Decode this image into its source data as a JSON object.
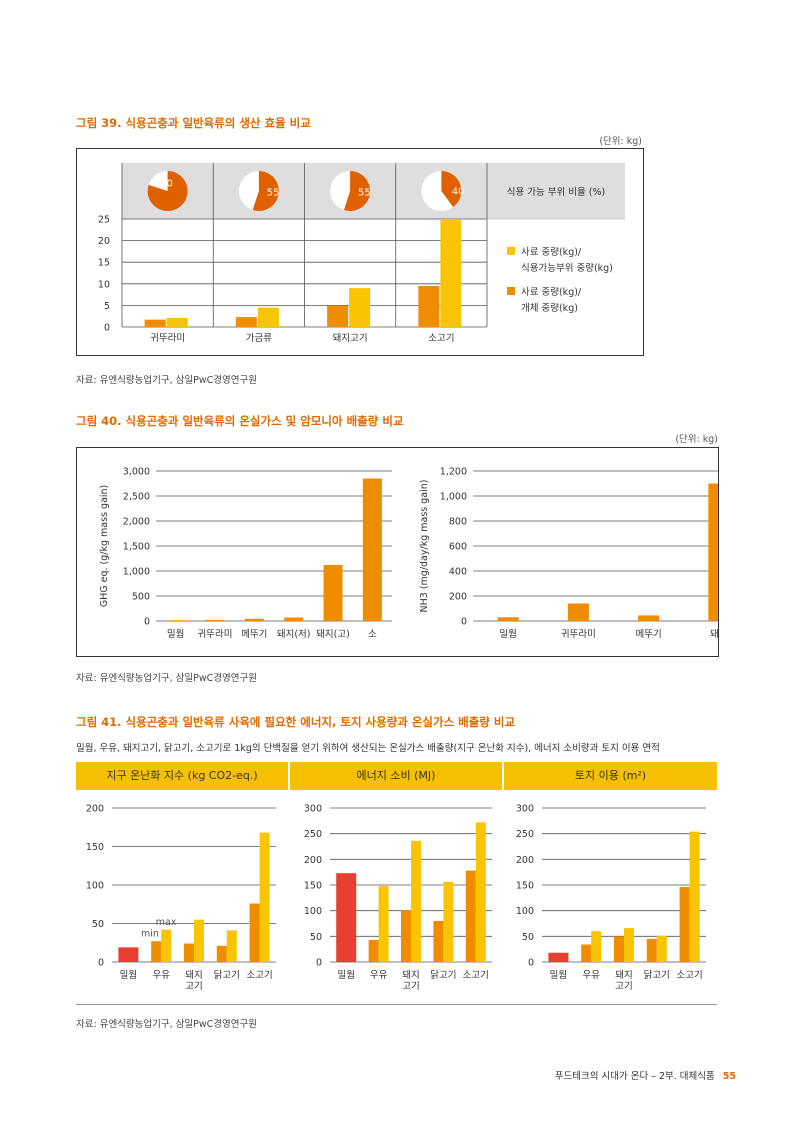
{
  "fig39": {
    "title": "그림 39. 식용곤충과 일반육류의 생산 효율 비교",
    "unit": "(단위: kg)",
    "source": "자료: 유엔식량농업기구, 삼일PwC경영연구원",
    "pie_header": "식용 가능 부위 비율 (%)",
    "legend_yellow_1": "사료 중량(kg)/",
    "legend_yellow_2": "식용가능부위 중량(kg)",
    "legend_orange_1": "사료 중량(kg)/",
    "legend_orange_2": "개체 중량(kg)"
  },
  "fig40": {
    "title": "그림 40. 식용곤충과 일반육류의 온실가스 및 암모니아 배출량 비교",
    "unit": "(단위: kg)",
    "source": "자료: 유엔식량농업기구, 삼일PwC경영연구원"
  },
  "fig41": {
    "title": "그림 41. 식용곤충과 일반육류 사육에 필요한 에너지, 토지 사용량과 온실가스 배출량 비교",
    "description": "밀웜, 우유, 돼지고기, 닭고기, 소고기로 1kg의 단백질을 얻기 위하여 생산되는 온실가스 배출량(지구 온난화 지수), 에너지 소비량과 토지 이용 면적",
    "header_ghg": "지구 온난화 지수 (kg CO2-eq.)",
    "header_energy": "에너지 소비 (MJ)",
    "header_land": "토지 이용 (m²)",
    "source": "자료: 유엔식량농업기구, 삼일PwC경영연구원"
  },
  "footer": {
    "text": "푸드테크의 시대가 온다 – 2부. 대체식품",
    "page": "55"
  },
  "colors": {
    "orange": "#f08c00",
    "yellow": "#f9c500",
    "red": "#e84030",
    "dark_orange": "#e06000",
    "title": "#e06a00"
  },
  "chart_data": [
    {
      "type": "bar",
      "id": "fig39",
      "categories": [
        "귀뚜라미",
        "가금류",
        "돼지고기",
        "소고기"
      ],
      "series": [
        {
          "values": [
            1.7,
            2.3,
            5.0,
            9.5
          ]
        },
        {
          "values": [
            2.1,
            4.5,
            9.0,
            25.0
          ]
        }
      ],
      "pie_values": [
        80,
        55,
        55,
        40
      ],
      "ylim": [
        0,
        25
      ],
      "yticks": [
        0,
        5,
        10,
        15,
        20,
        25
      ]
    },
    {
      "type": "bar",
      "id": "fig40-ghg",
      "categories": [
        "밀웜",
        "귀뚜라미",
        "메뚜기",
        "돼지(저)",
        "돼지(고)",
        "소"
      ],
      "values": [
        15,
        22,
        45,
        70,
        1120,
        2850
      ],
      "ylabel": "GHG eq. (g/kg mass gain)",
      "ylim": [
        0,
        3000
      ],
      "yticks": [
        "0",
        "500",
        "1,000",
        "1,500",
        "2,000",
        "2,500",
        "3,000"
      ]
    },
    {
      "type": "bar",
      "id": "fig40-nh3",
      "categories": [
        "밀웜",
        "귀뚜라미",
        "메뚜기",
        "돼지"
      ],
      "values": [
        30,
        140,
        45,
        1100
      ],
      "ylabel": "NH3 (mg/day/kg mass gain)",
      "ylim": [
        0,
        1200
      ],
      "yticks": [
        "0",
        "200",
        "400",
        "600",
        "800",
        "1,000",
        "1,200"
      ]
    },
    {
      "type": "bar",
      "id": "fig41-ghg",
      "categories": [
        "밀웜",
        "우유",
        "돼지 고기",
        "닭고기",
        "소고기"
      ],
      "min": [
        19,
        27,
        24,
        21,
        76
      ],
      "max": [
        19,
        42,
        55,
        41,
        168
      ],
      "annotations": [
        "max",
        "min"
      ],
      "ylim": [
        0,
        200
      ],
      "yticks": [
        0,
        50,
        100,
        150,
        200
      ]
    },
    {
      "type": "bar",
      "id": "fig41-energy",
      "categories": [
        "밀웜",
        "우유",
        "돼지 고기",
        "닭고기",
        "소고기"
      ],
      "min": [
        173,
        43,
        101,
        80,
        178
      ],
      "max": [
        173,
        148,
        236,
        156,
        272
      ],
      "ylim": [
        0,
        300
      ],
      "yticks": [
        0,
        50,
        100,
        150,
        200,
        250,
        300
      ]
    },
    {
      "type": "bar",
      "id": "fig41-land",
      "categories": [
        "밀웜",
        "우유",
        "돼지 고기",
        "닭고기",
        "소고기"
      ],
      "min": [
        18,
        34,
        50,
        45,
        146
      ],
      "max": [
        18,
        60,
        66,
        51,
        254
      ],
      "ylim": [
        0,
        300
      ],
      "yticks": [
        0,
        50,
        100,
        150,
        200,
        250,
        300
      ]
    }
  ]
}
